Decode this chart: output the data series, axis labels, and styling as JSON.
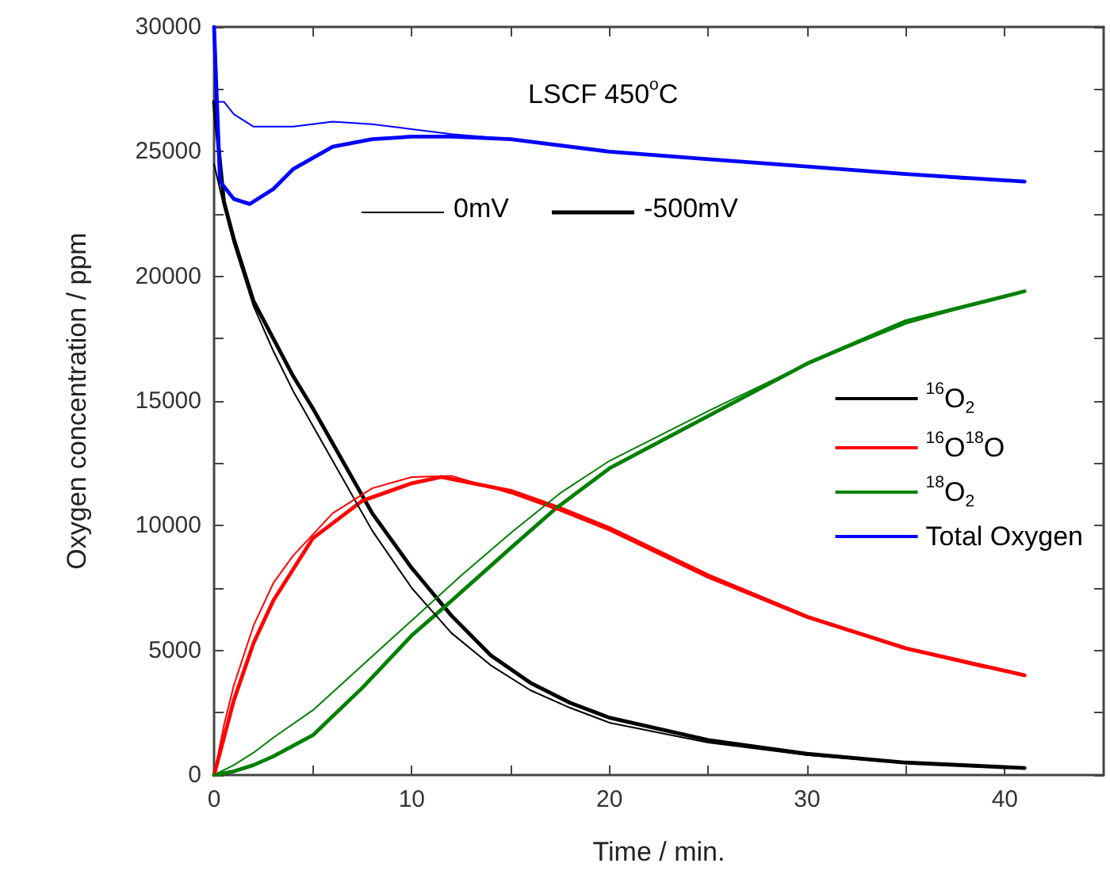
{
  "chart_data": {
    "type": "line",
    "xlabel": "Time / min.",
    "ylabel": "Oxygen concentration / ppm",
    "xlim": [
      0,
      45
    ],
    "ylim": [
      0,
      30000
    ],
    "xticks": [
      0,
      {
        "value": 5,
        "label": null
      },
      10,
      {
        "value": 15,
        "label": null
      },
      20,
      {
        "value": 25,
        "label": null
      },
      30,
      {
        "value": 35,
        "label": null
      },
      40
    ],
    "yticks": [
      0,
      {
        "value": 2500,
        "label": null
      },
      5000,
      {
        "value": 7500,
        "label": null
      },
      10000,
      {
        "value": 12500,
        "label": null
      },
      15000,
      {
        "value": 17500,
        "label": null
      },
      20000,
      {
        "value": 22500,
        "label": null
      },
      25000,
      {
        "value": 27500,
        "label": null
      },
      30000
    ],
    "grid": false,
    "legend": "right",
    "marker": "none",
    "line_style": "solid",
    "annotations": [
      "LSCF 450$^{o}$C",
      "0mV",
      "-500mV"
    ],
    "series": [
      {
        "name": "$^{16}$O$_{2}$",
        "color": "#000000",
        "x": [
          0,
          0.5,
          1,
          2,
          3,
          4,
          5,
          6,
          8,
          10,
          12,
          14,
          16,
          18,
          20,
          25,
          30,
          35,
          39
        ],
        "values": [
          24500,
          22800,
          21300,
          18800,
          17000,
          15400,
          14000,
          12600,
          9800,
          7500,
          5700,
          4400,
          3400,
          2700,
          2100,
          1300,
          800,
          480,
          320
        ]
      },
      {
        "name": "$^{16}$O$^{18}$O",
        "color": "#ff0000",
        "x": [
          0,
          0.5,
          1,
          2,
          3,
          4,
          6,
          8,
          10,
          12,
          15,
          17.5,
          20,
          25,
          30,
          35,
          39
        ],
        "values": [
          0,
          2000,
          3600,
          6000,
          7700,
          8800,
          10500,
          11500,
          11950,
          12000,
          11300,
          10600,
          9800,
          7900,
          6300,
          5050,
          4300
        ]
      },
      {
        "name": "$^{18}$O$_{2}$",
        "color": "#008000",
        "x": [
          0,
          1,
          2,
          3,
          5,
          7.5,
          10,
          12.5,
          15,
          17.5,
          20,
          25,
          30,
          35,
          39
        ],
        "values": [
          0,
          400,
          900,
          1500,
          2600,
          4400,
          6200,
          8000,
          9700,
          11300,
          12600,
          14600,
          16500,
          18100,
          19000
        ]
      },
      {
        "name": "Total Oxygen",
        "color": "#0000ff",
        "x": [
          0,
          0.5,
          1,
          2,
          4,
          6,
          8,
          10,
          12,
          15,
          20,
          25,
          30,
          35,
          38
        ],
        "values": [
          27000,
          27000,
          26500,
          26000,
          26000,
          26200,
          26100,
          25900,
          25700,
          25500,
          25000,
          24700,
          24400,
          24100,
          23900
        ]
      },
      {
        "color": "#000000",
        "x": [
          0,
          0.5,
          1,
          2,
          3,
          4,
          5,
          6,
          8,
          10,
          12,
          14,
          16,
          18,
          20,
          25,
          30,
          35,
          41
        ],
        "values": [
          27000,
          23000,
          21500,
          19000,
          17500,
          16000,
          14700,
          13300,
          10500,
          8300,
          6400,
          4800,
          3700,
          2900,
          2300,
          1400,
          850,
          500,
          280
        ]
      },
      {
        "color": "#ff0000",
        "x": [
          0,
          1,
          2,
          3,
          5,
          7.5,
          10,
          11.5,
          15,
          17.5,
          20,
          25,
          30,
          35,
          41
        ],
        "values": [
          0,
          3000,
          5300,
          7000,
          9500,
          11000,
          11700,
          11950,
          11400,
          10700,
          9900,
          8000,
          6350,
          5080,
          4000
        ]
      },
      {
        "color": "#008000",
        "x": [
          0,
          1,
          2,
          3,
          5,
          7.5,
          10,
          11.6,
          15,
          17.3,
          20,
          25,
          30,
          35,
          41
        ],
        "values": [
          0,
          150,
          400,
          750,
          1600,
          3500,
          5600,
          6700,
          9100,
          10700,
          12300,
          14400,
          16500,
          18200,
          19400
        ]
      },
      {
        "color": "#0000ff",
        "x": [
          0,
          0.3,
          1,
          1.8,
          3,
          4,
          6,
          8,
          10,
          12,
          15,
          20,
          25,
          30,
          35,
          41
        ],
        "values": [
          30000,
          23800,
          23100,
          22900,
          23500,
          24300,
          25200,
          25500,
          25600,
          25600,
          25500,
          25000,
          24700,
          24400,
          24100,
          23800
        ]
      }
    ]
  }
}
